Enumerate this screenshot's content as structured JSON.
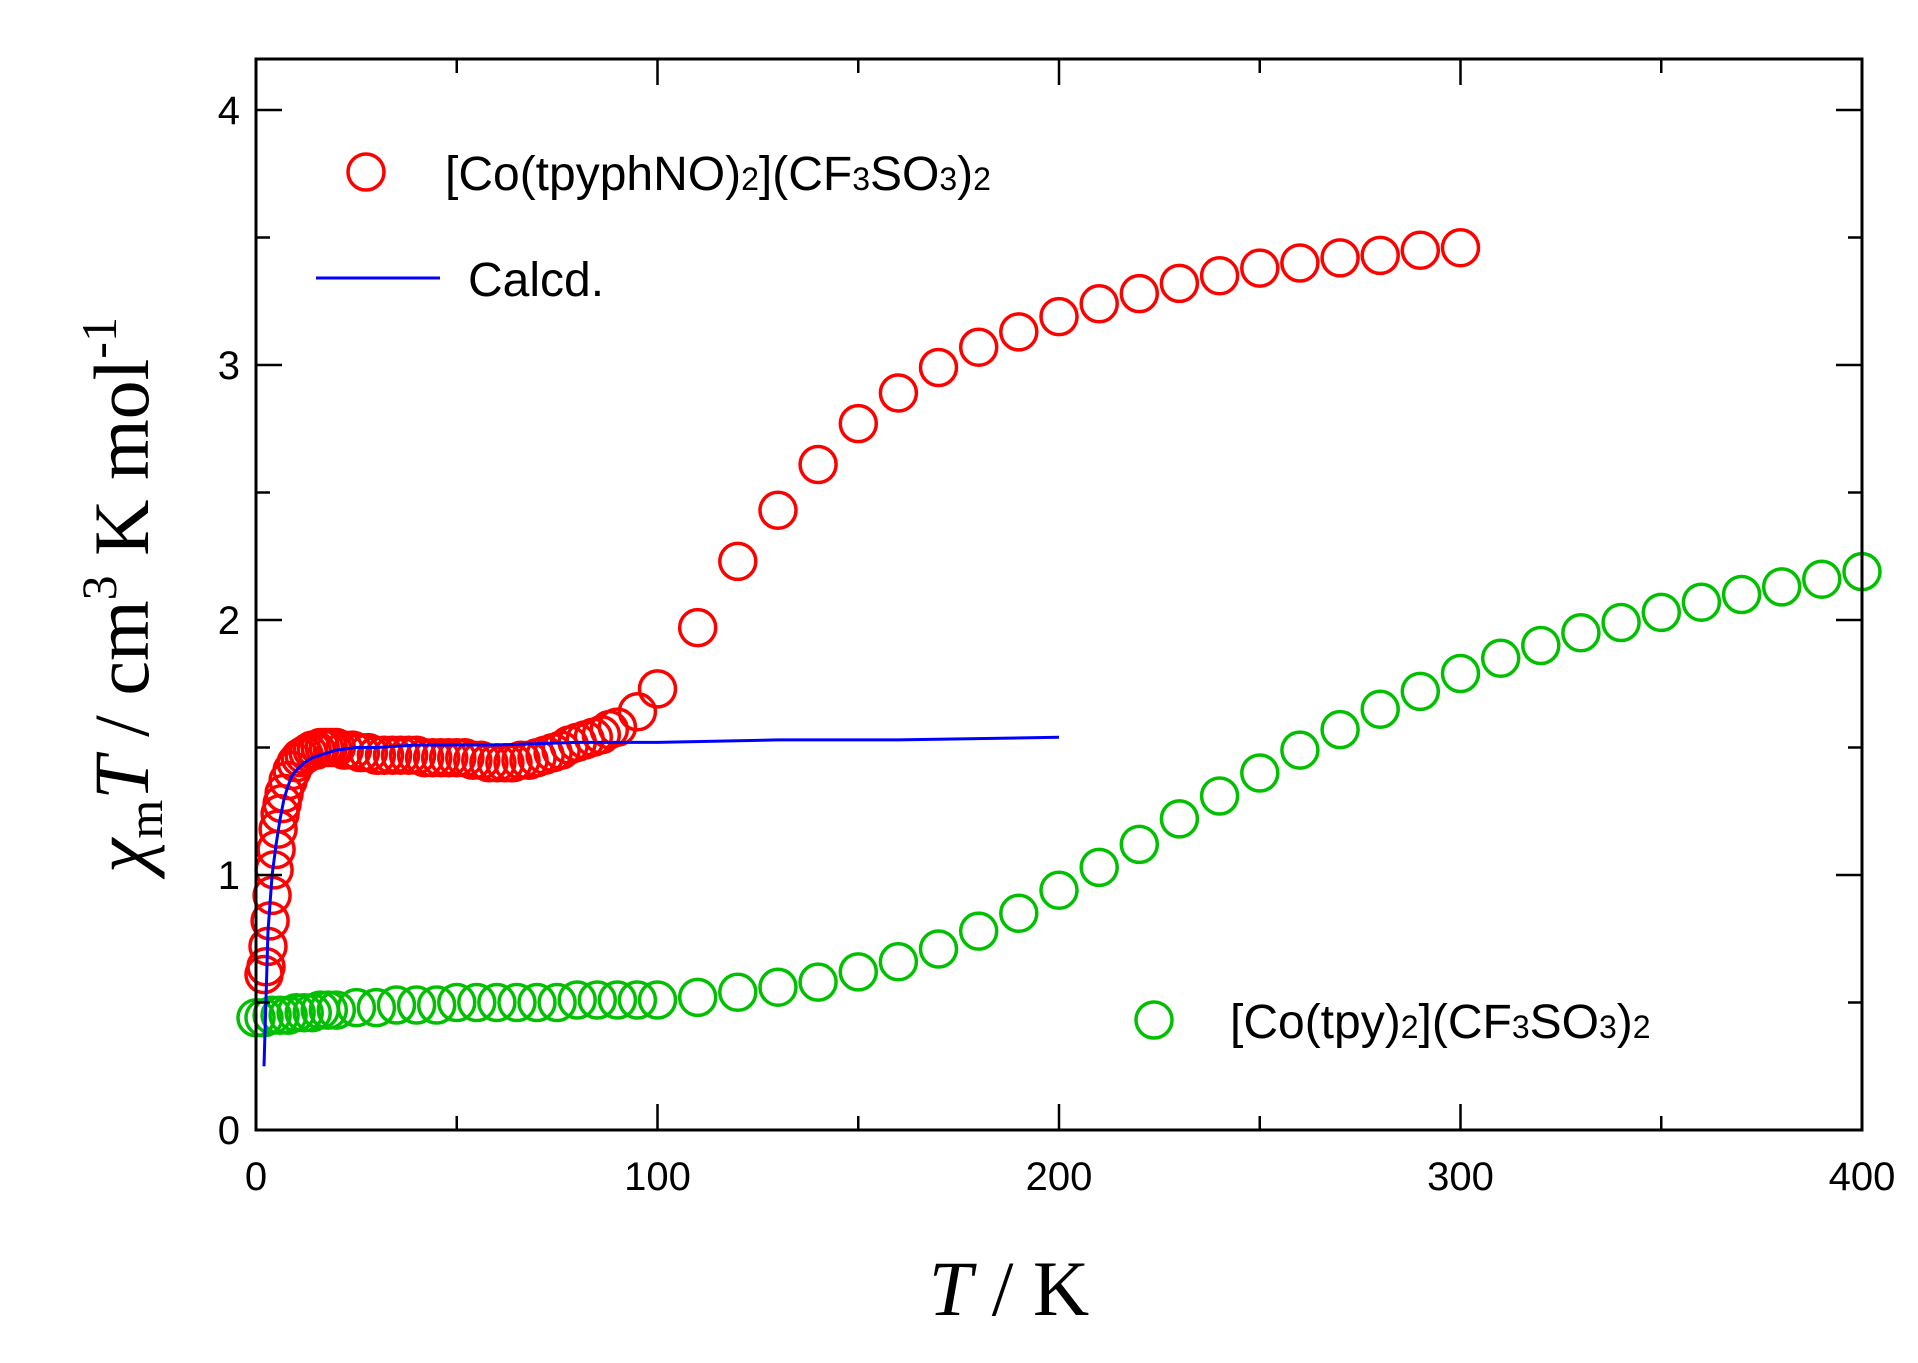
{
  "chart_data": {
    "type": "scatter",
    "title": "",
    "xlim": [
      0,
      400
    ],
    "ylim": [
      0,
      4.2
    ],
    "x_ticks": [
      0,
      100,
      200,
      300,
      400
    ],
    "y_ticks": [
      0,
      1,
      2,
      3,
      4
    ],
    "x_tick_labels": [
      "0",
      "100",
      "200",
      "300",
      "400"
    ],
    "y_tick_labels": [
      "0",
      "1",
      "2",
      "3",
      "4"
    ],
    "xlabel": {
      "var": "T",
      "rest": " / K"
    },
    "ylabel": {
      "chi": "χ",
      "sub": "m",
      "var": "T",
      "unit": " / cm",
      "sup3": "3",
      "unit2": " K mol",
      "supm1": "-1"
    },
    "series": [
      {
        "name": "[Co(tpyphNO)2](CF3SO3)2",
        "color": "#ff0000",
        "marker": "open-circle",
        "legend": {
          "pre": "[Co(tpyphNO)",
          "s1": "2",
          "mid": "](CF",
          "s2": "3",
          "mid2": "SO",
          "s3": "3",
          "post": ")",
          "s4": "2"
        },
        "x": [
          2,
          2.5,
          3,
          3.5,
          4,
          4.5,
          5,
          5.5,
          6,
          6.5,
          7,
          8,
          9,
          10,
          11,
          12,
          13,
          14,
          15,
          16,
          17,
          18,
          19,
          20,
          22,
          24,
          26,
          28,
          30,
          32,
          34,
          36,
          38,
          40,
          42,
          44,
          46,
          48,
          50,
          52,
          54,
          56,
          58,
          60,
          62,
          64,
          66,
          68,
          70,
          72,
          74,
          76,
          78,
          80,
          82,
          84,
          86,
          88,
          90,
          95,
          100,
          110,
          120,
          130,
          140,
          150,
          160,
          170,
          180,
          190,
          200,
          210,
          220,
          230,
          240,
          250,
          260,
          270,
          280,
          290,
          300
        ],
        "y": [
          0.61,
          0.64,
          0.72,
          0.82,
          0.92,
          1.02,
          1.1,
          1.18,
          1.24,
          1.28,
          1.32,
          1.37,
          1.41,
          1.44,
          1.46,
          1.47,
          1.48,
          1.49,
          1.49,
          1.5,
          1.5,
          1.5,
          1.5,
          1.5,
          1.49,
          1.49,
          1.48,
          1.48,
          1.47,
          1.47,
          1.47,
          1.47,
          1.47,
          1.47,
          1.46,
          1.46,
          1.46,
          1.46,
          1.46,
          1.46,
          1.45,
          1.45,
          1.44,
          1.44,
          1.44,
          1.44,
          1.45,
          1.45,
          1.46,
          1.47,
          1.48,
          1.49,
          1.51,
          1.52,
          1.53,
          1.54,
          1.55,
          1.57,
          1.58,
          1.64,
          1.73,
          1.97,
          2.23,
          2.43,
          2.61,
          2.77,
          2.89,
          2.99,
          3.07,
          3.13,
          3.19,
          3.24,
          3.28,
          3.32,
          3.35,
          3.38,
          3.4,
          3.42,
          3.43,
          3.45,
          3.46
        ]
      },
      {
        "name": "Calcd.",
        "color": "#0000ff",
        "marker": "line",
        "x": [
          2,
          3,
          4,
          5,
          6,
          7,
          8,
          9,
          10,
          12,
          14,
          16,
          18,
          20,
          25,
          30,
          40,
          50,
          60,
          80,
          100,
          130,
          160,
          200
        ],
        "y": [
          0.25,
          0.78,
          1.0,
          1.12,
          1.22,
          1.3,
          1.35,
          1.39,
          1.41,
          1.44,
          1.46,
          1.47,
          1.48,
          1.49,
          1.5,
          1.5,
          1.51,
          1.51,
          1.51,
          1.52,
          1.52,
          1.53,
          1.53,
          1.54
        ]
      },
      {
        "name": "[Co(tpy)2](CF3SO3)2",
        "color": "#00c000",
        "marker": "open-circle",
        "legend": {
          "pre": "[Co(tpy)",
          "s1": "2",
          "mid": "](CF",
          "s2": "3",
          "mid2": "SO",
          "s3": "3",
          "post": ")",
          "s4": "2"
        },
        "x": [
          0,
          2,
          4,
          6,
          8,
          10,
          12,
          14,
          16,
          18,
          20,
          25,
          30,
          35,
          40,
          45,
          50,
          55,
          60,
          65,
          70,
          75,
          80,
          85,
          90,
          95,
          100,
          110,
          120,
          130,
          140,
          150,
          160,
          170,
          180,
          190,
          200,
          210,
          220,
          230,
          240,
          250,
          260,
          270,
          280,
          290,
          300,
          310,
          320,
          330,
          340,
          350,
          360,
          370,
          380,
          390,
          400
        ],
        "y": [
          0.44,
          0.44,
          0.45,
          0.45,
          0.45,
          0.46,
          0.46,
          0.46,
          0.47,
          0.47,
          0.47,
          0.48,
          0.48,
          0.49,
          0.49,
          0.49,
          0.5,
          0.5,
          0.5,
          0.5,
          0.5,
          0.5,
          0.51,
          0.51,
          0.51,
          0.51,
          0.51,
          0.52,
          0.54,
          0.56,
          0.58,
          0.62,
          0.66,
          0.71,
          0.78,
          0.85,
          0.94,
          1.03,
          1.12,
          1.22,
          1.31,
          1.4,
          1.49,
          1.57,
          1.65,
          1.72,
          1.79,
          1.85,
          1.9,
          1.95,
          1.99,
          2.03,
          2.07,
          2.1,
          2.13,
          2.16,
          2.19
        ]
      }
    ],
    "legend_placement": "top-left and bottom-right"
  }
}
